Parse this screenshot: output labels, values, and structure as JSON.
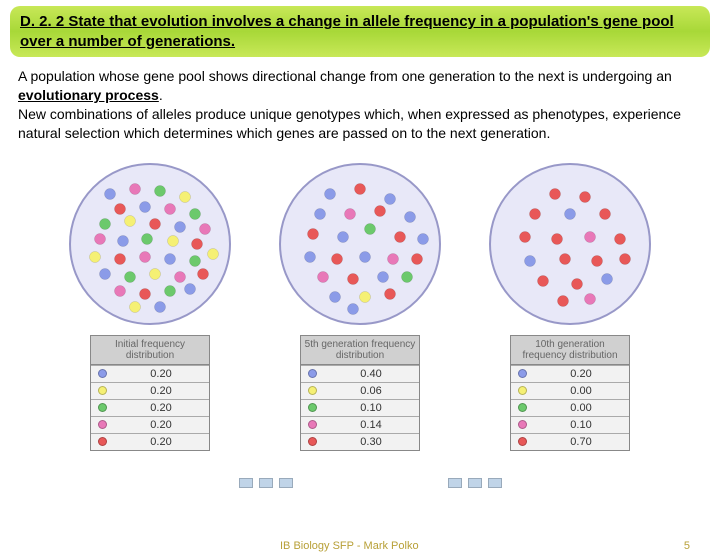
{
  "header": {
    "title": "D. 2. 2 State that evolution involves a change in allele frequency in a population's gene pool over a number of generations."
  },
  "paragraph": {
    "line1": "A population whose gene pool shows directional change from one generation to the next is undergoing an ",
    "bold": "evolutionary process",
    "line2": ".",
    "line3": "New combinations of alleles produce unique genotypes which, when expressed as phenotypes, experience natural selection which determines which genes are passed on to the next generation."
  },
  "allele_colors": {
    "blue": "#8b9be8",
    "yellow": "#f5f074",
    "green": "#6cc96c",
    "pink": "#e878b8",
    "red": "#e85858"
  },
  "circle_style": {
    "fill": "#e8e8f8",
    "stroke": "#9898c8",
    "stroke_width": 2,
    "radius": 80
  },
  "columns": [
    {
      "name": "initial",
      "header": "Initial frequency distribution",
      "freqs": [
        [
          "blue",
          "0.20"
        ],
        [
          "yellow",
          "0.20"
        ],
        [
          "green",
          "0.20"
        ],
        [
          "pink",
          "0.20"
        ],
        [
          "red",
          "0.20"
        ]
      ],
      "dots": [
        [
          45,
          35,
          "blue"
        ],
        [
          70,
          30,
          "pink"
        ],
        [
          95,
          32,
          "green"
        ],
        [
          120,
          38,
          "yellow"
        ],
        [
          55,
          50,
          "red"
        ],
        [
          80,
          48,
          "blue"
        ],
        [
          105,
          50,
          "pink"
        ],
        [
          130,
          55,
          "green"
        ],
        [
          40,
          65,
          "green"
        ],
        [
          65,
          62,
          "yellow"
        ],
        [
          90,
          65,
          "red"
        ],
        [
          115,
          68,
          "blue"
        ],
        [
          140,
          70,
          "pink"
        ],
        [
          35,
          80,
          "pink"
        ],
        [
          58,
          82,
          "blue"
        ],
        [
          82,
          80,
          "green"
        ],
        [
          108,
          82,
          "yellow"
        ],
        [
          132,
          85,
          "red"
        ],
        [
          30,
          98,
          "yellow"
        ],
        [
          55,
          100,
          "red"
        ],
        [
          80,
          98,
          "pink"
        ],
        [
          105,
          100,
          "blue"
        ],
        [
          130,
          102,
          "green"
        ],
        [
          148,
          95,
          "yellow"
        ],
        [
          40,
          115,
          "blue"
        ],
        [
          65,
          118,
          "green"
        ],
        [
          90,
          115,
          "yellow"
        ],
        [
          115,
          118,
          "pink"
        ],
        [
          138,
          115,
          "red"
        ],
        [
          55,
          132,
          "pink"
        ],
        [
          80,
          135,
          "red"
        ],
        [
          105,
          132,
          "green"
        ],
        [
          125,
          130,
          "blue"
        ],
        [
          70,
          148,
          "yellow"
        ],
        [
          95,
          148,
          "blue"
        ]
      ]
    },
    {
      "name": "gen5",
      "header": "5th generation frequency distribution",
      "freqs": [
        [
          "blue",
          "0.40"
        ],
        [
          "yellow",
          "0.06"
        ],
        [
          "green",
          "0.10"
        ],
        [
          "pink",
          "0.14"
        ],
        [
          "red",
          "0.30"
        ]
      ],
      "dots": [
        [
          55,
          35,
          "blue"
        ],
        [
          85,
          30,
          "red"
        ],
        [
          115,
          40,
          "blue"
        ],
        [
          45,
          55,
          "blue"
        ],
        [
          75,
          55,
          "pink"
        ],
        [
          105,
          52,
          "red"
        ],
        [
          135,
          58,
          "blue"
        ],
        [
          38,
          75,
          "red"
        ],
        [
          68,
          78,
          "blue"
        ],
        [
          95,
          70,
          "green"
        ],
        [
          125,
          78,
          "red"
        ],
        [
          148,
          80,
          "blue"
        ],
        [
          35,
          98,
          "blue"
        ],
        [
          62,
          100,
          "red"
        ],
        [
          90,
          98,
          "blue"
        ],
        [
          118,
          100,
          "pink"
        ],
        [
          142,
          100,
          "red"
        ],
        [
          48,
          118,
          "pink"
        ],
        [
          78,
          120,
          "red"
        ],
        [
          108,
          118,
          "blue"
        ],
        [
          132,
          118,
          "green"
        ],
        [
          60,
          138,
          "blue"
        ],
        [
          90,
          138,
          "yellow"
        ],
        [
          115,
          135,
          "red"
        ],
        [
          78,
          150,
          "blue"
        ]
      ]
    },
    {
      "name": "gen10",
      "header": "10th generation frequency distribution",
      "freqs": [
        [
          "blue",
          "0.20"
        ],
        [
          "yellow",
          "0.00"
        ],
        [
          "green",
          "0.00"
        ],
        [
          "pink",
          "0.10"
        ],
        [
          "red",
          "0.70"
        ]
      ],
      "dots": [
        [
          70,
          35,
          "red"
        ],
        [
          100,
          38,
          "red"
        ],
        [
          50,
          55,
          "red"
        ],
        [
          85,
          55,
          "blue"
        ],
        [
          120,
          55,
          "red"
        ],
        [
          40,
          78,
          "red"
        ],
        [
          72,
          80,
          "red"
        ],
        [
          105,
          78,
          "pink"
        ],
        [
          135,
          80,
          "red"
        ],
        [
          45,
          102,
          "blue"
        ],
        [
          80,
          100,
          "red"
        ],
        [
          112,
          102,
          "red"
        ],
        [
          140,
          100,
          "red"
        ],
        [
          58,
          122,
          "red"
        ],
        [
          92,
          125,
          "red"
        ],
        [
          122,
          120,
          "blue"
        ],
        [
          78,
          142,
          "red"
        ],
        [
          105,
          140,
          "pink"
        ]
      ]
    }
  ],
  "footer": {
    "credit": "IB Biology SFP - Mark Polko",
    "page": "5"
  }
}
